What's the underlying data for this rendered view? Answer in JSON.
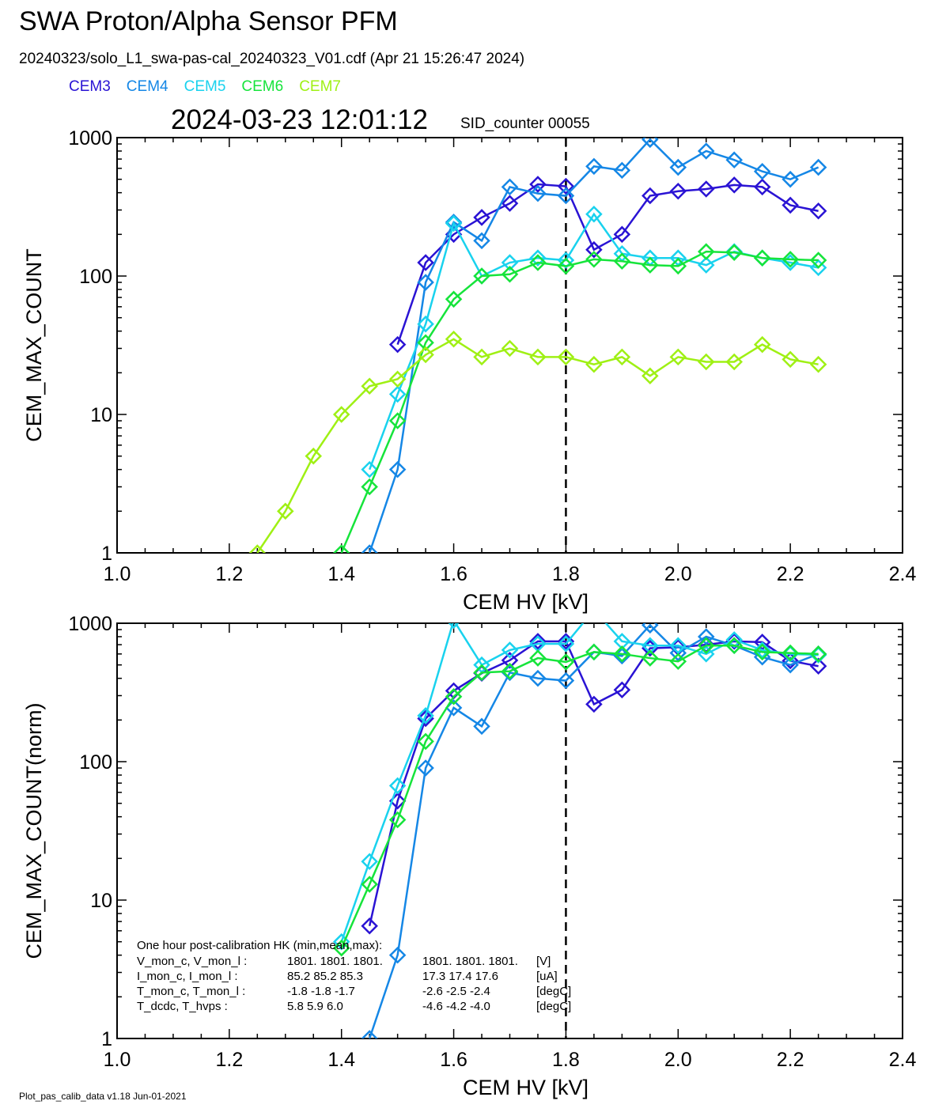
{
  "header": {
    "title": "SWA Proton/Alpha Sensor PFM",
    "subtitle": "20240323/solo_L1_swa-pas-cal_20240323_V01.cdf  (Apr 21 15:26:47 2024)",
    "datetime": "2024-03-23 12:01:12",
    "sid_counter": "SID_counter 00055"
  },
  "legend": [
    {
      "name": "CEM3",
      "color": "#2a13d4"
    },
    {
      "name": "CEM4",
      "color": "#1587e6"
    },
    {
      "name": "CEM5",
      "color": "#19d2ee"
    },
    {
      "name": "CEM6",
      "color": "#16e43b"
    },
    {
      "name": "CEM7",
      "color": "#9ff014"
    }
  ],
  "footer": "Plot_pas_calib_data v1.18 Jun-01-2021",
  "hk_box": {
    "title": "One hour post-calibration HK (min,mean,max):",
    "rows": [
      {
        "label": "V_mon_c, V_mon_l :",
        "c": "1801.   1801.   1801.",
        "l": "1801.   1801.   1801.",
        "unit": "[V]"
      },
      {
        "label": "I_mon_c,  I_mon_l :",
        "c": "85.2   85.2   85.3",
        "l": "17.3   17.4   17.6",
        "unit": "[uA]"
      },
      {
        "label": "T_mon_c, T_mon_l :",
        "c": "-1.8   -1.8   -1.7",
        "l": "-2.6   -2.5   -2.4",
        "unit": "[degC]"
      },
      {
        "label": "T_dcdc,    T_hvps :",
        "c": "5.8    5.9    6.0",
        "l": "-4.6   -4.2   -4.0",
        "unit": "[degC]"
      }
    ]
  },
  "chart_data": [
    {
      "type": "line",
      "marker": "diamond",
      "xlabel": "CEM HV [kV]",
      "ylabel": "CEM_MAX_COUNT",
      "xlim": [
        1.0,
        2.4
      ],
      "ylim": [
        1,
        1000
      ],
      "yscale": "log",
      "xticks": [
        "1.0",
        "1.2",
        "1.4",
        "1.6",
        "1.8",
        "2.0",
        "2.2",
        "2.4"
      ],
      "yticks": [
        "1",
        "10",
        "100",
        "1000"
      ],
      "vline": 1.8,
      "x": [
        1.25,
        1.3,
        1.35,
        1.4,
        1.45,
        1.5,
        1.55,
        1.6,
        1.65,
        1.7,
        1.75,
        1.8,
        1.85,
        1.9,
        1.95,
        2.0,
        2.05,
        2.1,
        2.15,
        2.2,
        2.25
      ],
      "series": [
        {
          "name": "CEM3",
          "color": "#2a13d4",
          "values": [
            null,
            null,
            null,
            null,
            null,
            32,
            125,
            200,
            265,
            335,
            460,
            445,
            155,
            200,
            380,
            410,
            425,
            455,
            440,
            325,
            295
          ]
        },
        {
          "name": "CEM4",
          "color": "#1587e6",
          "values": [
            null,
            null,
            null,
            null,
            1,
            4,
            90,
            245,
            180,
            440,
            395,
            380,
            620,
            580,
            970,
            610,
            800,
            690,
            570,
            500,
            610
          ]
        },
        {
          "name": "CEM5",
          "color": "#19d2ee",
          "values": [
            null,
            null,
            null,
            null,
            4,
            14,
            45,
            240,
            100,
            125,
            135,
            130,
            280,
            145,
            135,
            135,
            120,
            150,
            135,
            125,
            115
          ]
        },
        {
          "name": "CEM6",
          "color": "#16e43b",
          "values": [
            null,
            null,
            null,
            1,
            3,
            9,
            33,
            68,
            100,
            103,
            125,
            118,
            132,
            128,
            120,
            118,
            150,
            148,
            135,
            132,
            130
          ]
        },
        {
          "name": "CEM7",
          "color": "#9ff014",
          "values": [
            1,
            2,
            5,
            10,
            16,
            18,
            27,
            35,
            26,
            30,
            26,
            26,
            23,
            26,
            19,
            26,
            24,
            24,
            32,
            25,
            23
          ]
        }
      ]
    },
    {
      "type": "line",
      "marker": "diamond",
      "xlabel": "CEM HV [kV]",
      "ylabel": "CEM_MAX_COUNT(norm)",
      "xlim": [
        1.0,
        2.4
      ],
      "ylim": [
        1,
        1000
      ],
      "yscale": "log",
      "xticks": [
        "1.0",
        "1.2",
        "1.4",
        "1.6",
        "1.8",
        "2.0",
        "2.2",
        "2.4"
      ],
      "yticks": [
        "1",
        "10",
        "100",
        "1000"
      ],
      "vline": 1.8,
      "x": [
        1.25,
        1.3,
        1.35,
        1.4,
        1.45,
        1.5,
        1.55,
        1.6,
        1.65,
        1.7,
        1.75,
        1.8,
        1.85,
        1.9,
        1.95,
        2.0,
        2.05,
        2.1,
        2.15,
        2.2,
        2.25
      ],
      "series": [
        {
          "name": "CEM3",
          "color": "#2a13d4",
          "values": [
            null,
            null,
            null,
            null,
            6.5,
            52,
            205,
            325,
            435,
            540,
            740,
            740,
            260,
            330,
            660,
            670,
            700,
            740,
            730,
            535,
            490
          ]
        },
        {
          "name": "CEM4",
          "color": "#1587e6",
          "values": [
            null,
            null,
            null,
            null,
            1,
            4,
            90,
            245,
            180,
            440,
            400,
            385,
            620,
            580,
            970,
            610,
            800,
            690,
            570,
            500,
            600
          ]
        },
        {
          "name": "CEM5",
          "color": "#19d2ee",
          "values": [
            null,
            null,
            null,
            5,
            19,
            67,
            215,
            1050,
            500,
            640,
            710,
            710,
            1250,
            740,
            690,
            690,
            600,
            760,
            640,
            600,
            590
          ]
        },
        {
          "name": "CEM6",
          "color": "#16e43b",
          "values": [
            null,
            null,
            null,
            4.5,
            13,
            38,
            140,
            295,
            440,
            450,
            560,
            525,
            620,
            600,
            560,
            530,
            690,
            690,
            620,
            610,
            600
          ]
        }
      ]
    }
  ]
}
